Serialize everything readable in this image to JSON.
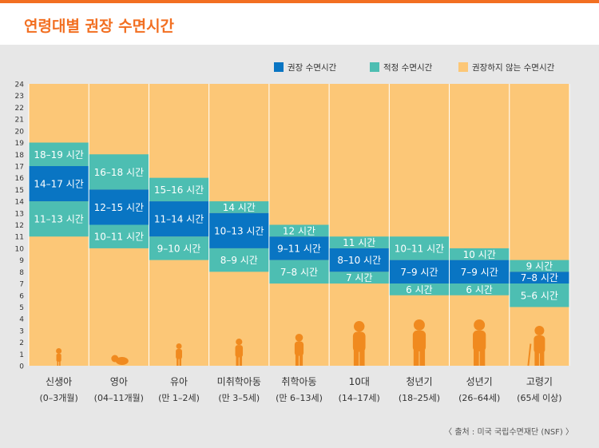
{
  "title": "연령대별 권장 수면시간",
  "source": "〈 출처 : 미국 국립수면재단 (NSF) 〉",
  "colors": {
    "title": "#f26f21",
    "recommended": "#0975c3",
    "acceptable": "#4dbeb2",
    "not_recommended": "#fcc777",
    "panel": "#e7e7e7"
  },
  "chart_data": {
    "type": "bar",
    "subtype": "floating-stacked",
    "ylim": [
      0,
      24
    ],
    "yticks": [
      "0",
      "1",
      "2",
      "3",
      "4",
      "5",
      "6",
      "7",
      "8",
      "9",
      "10",
      "11",
      "12",
      "13",
      "14",
      "15",
      "16",
      "17",
      "18",
      "19",
      "20",
      "21",
      "22",
      "23",
      "24"
    ],
    "grid": false,
    "legend_position": "top-right",
    "legend": [
      {
        "name": "권장 수면시간",
        "color": "#0975c3"
      },
      {
        "name": "적정 수면시간",
        "color": "#4dbeb2"
      },
      {
        "name": "권장하지 않는 수면시간",
        "color": "#fcc777"
      }
    ],
    "categories": [
      {
        "name": "신생아",
        "sub": "(0–3개월)"
      },
      {
        "name": "영아",
        "sub": "(04–11개월)"
      },
      {
        "name": "유아",
        "sub": "(만 1–2세)"
      },
      {
        "name": "미취학아동",
        "sub": "(만 3–5세)"
      },
      {
        "name": "취학아동",
        "sub": "(만 6–13세)"
      },
      {
        "name": "10대",
        "sub": "(14–17세)"
      },
      {
        "name": "청년기",
        "sub": "(18–25세)"
      },
      {
        "name": "성년기",
        "sub": "(26–64세)"
      },
      {
        "name": "고령기",
        "sub": "(65세 이상)"
      }
    ],
    "series": [
      {
        "name": "권장 수면시간",
        "ranges": [
          [
            14,
            17
          ],
          [
            12,
            15
          ],
          [
            11,
            14
          ],
          [
            10,
            13
          ],
          [
            9,
            11
          ],
          [
            8,
            10
          ],
          [
            7,
            9
          ],
          [
            7,
            9
          ],
          [
            7,
            8
          ]
        ],
        "labels": [
          "14–17 시간",
          "12–15 시간",
          "11–14 시간",
          "10–13 시간",
          "9–11 시간",
          "8–10 시간",
          "7–9 시간",
          "7–9 시간",
          "7–8 시간"
        ]
      },
      {
        "name": "적정 수면시간 (상)",
        "ranges": [
          [
            17,
            19
          ],
          [
            15,
            18
          ],
          [
            14,
            16
          ],
          [
            13,
            14
          ],
          [
            11,
            12
          ],
          [
            10,
            11
          ],
          [
            9,
            11
          ],
          [
            9,
            10
          ],
          [
            8,
            9
          ]
        ],
        "labels": [
          "18–19 시간",
          "16–18 시간",
          "15–16 시간",
          "14 시간",
          "12 시간",
          "11 시간",
          "10–11 시간",
          "10 시간",
          "9 시간"
        ]
      },
      {
        "name": "적정 수면시간 (하)",
        "ranges": [
          [
            11,
            14
          ],
          [
            10,
            12
          ],
          [
            9,
            11
          ],
          [
            8,
            10
          ],
          [
            7,
            9
          ],
          [
            7,
            8
          ],
          [
            6,
            7
          ],
          [
            6,
            7
          ],
          [
            5,
            7
          ]
        ],
        "labels": [
          "11–13 시간",
          "10–11 시간",
          "9–10 시간",
          "8–9 시간",
          "7–8 시간",
          "7 시간",
          "6 시간",
          "6 시간",
          "5–6 시간"
        ]
      }
    ]
  }
}
